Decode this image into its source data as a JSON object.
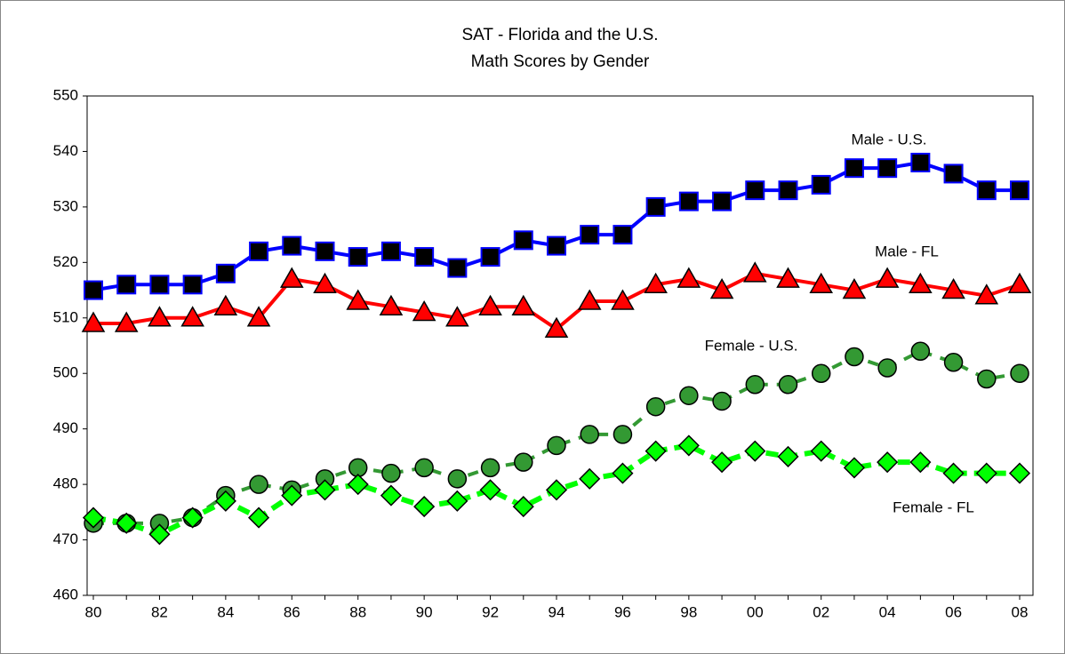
{
  "chart_data": {
    "type": "line",
    "title": "SAT - Florida and the U.S.",
    "subtitle": "Math Scores by Gender",
    "categories": [
      "80",
      null,
      "82",
      null,
      "84",
      null,
      "86",
      null,
      "88",
      null,
      "90",
      null,
      "92",
      null,
      "94",
      null,
      "96",
      null,
      "98",
      null,
      "00",
      null,
      "02",
      null,
      "04",
      null,
      "06",
      null,
      "08"
    ],
    "series": [
      {
        "name": "Male - U.S.",
        "color": "#0000ff",
        "marker": "square",
        "marker_color": "#000000",
        "dash": false,
        "values": [
          515,
          516,
          516,
          516,
          518,
          522,
          523,
          522,
          521,
          522,
          521,
          519,
          521,
          524,
          523,
          525,
          525,
          530,
          531,
          531,
          533,
          533,
          534,
          537,
          537,
          538,
          536,
          533,
          533
        ]
      },
      {
        "name": "Male - FL",
        "color": "#ff0000",
        "marker": "triangle",
        "marker_color": "#ff0000",
        "dash": false,
        "values": [
          509,
          509,
          510,
          510,
          512,
          510,
          517,
          516,
          513,
          512,
          511,
          510,
          512,
          512,
          508,
          513,
          513,
          516,
          517,
          515,
          518,
          517,
          516,
          515,
          517,
          516,
          515,
          514,
          516
        ]
      },
      {
        "name": "Female - U.S.",
        "color": "#339933",
        "marker": "circle",
        "marker_color": "#339933",
        "dash": true,
        "values": [
          473,
          473,
          473,
          474,
          478,
          480,
          479,
          481,
          483,
          482,
          483,
          481,
          483,
          484,
          487,
          489,
          489,
          494,
          496,
          495,
          498,
          498,
          500,
          503,
          501,
          504,
          502,
          499,
          500
        ]
      },
      {
        "name": "Female - FL",
        "color": "#00ff00",
        "marker": "diamond",
        "marker_color": "#00ff00",
        "dash": true,
        "values": [
          474,
          473,
          471,
          474,
          477,
          474,
          478,
          479,
          480,
          478,
          476,
          477,
          479,
          476,
          479,
          481,
          482,
          486,
          487,
          484,
          486,
          485,
          486,
          483,
          484,
          484,
          482,
          482,
          482
        ]
      }
    ],
    "ylim": [
      460,
      550
    ],
    "yticks": [
      460,
      470,
      480,
      490,
      500,
      510,
      520,
      530,
      540,
      550
    ],
    "grid": false
  }
}
